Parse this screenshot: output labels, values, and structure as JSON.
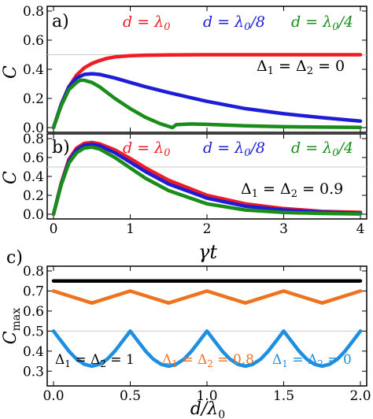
{
  "chart_data": [
    {
      "panel_label": "a)",
      "type": "line",
      "xlim": [
        0,
        4
      ],
      "ylim": [
        0,
        0.8
      ],
      "yticks": [
        "0.0",
        "0.2",
        "0.4",
        "0.6",
        "0.8"
      ],
      "ylabel": "C",
      "annotation": "Δ1 = Δ2 = 0",
      "series": [
        {
          "name": "d = λ0",
          "color": "#ee1c24",
          "x": [
            0,
            0.1,
            0.2,
            0.3,
            0.4,
            0.5,
            0.6,
            0.7,
            0.8,
            1.0,
            1.2,
            1.5,
            2.0,
            2.5,
            3.0,
            3.5,
            4.0
          ],
          "y": [
            0,
            0.16,
            0.28,
            0.36,
            0.41,
            0.44,
            0.46,
            0.475,
            0.485,
            0.493,
            0.497,
            0.499,
            0.5,
            0.5,
            0.5,
            0.5,
            0.5
          ]
        },
        {
          "name": "d = λ0/8",
          "color": "#1d1dd8",
          "x": [
            0,
            0.1,
            0.2,
            0.3,
            0.4,
            0.5,
            0.6,
            0.8,
            1.0,
            1.2,
            1.5,
            2.0,
            2.5,
            3.0,
            3.5,
            4.0
          ],
          "y": [
            0,
            0.16,
            0.28,
            0.34,
            0.365,
            0.37,
            0.365,
            0.34,
            0.31,
            0.28,
            0.24,
            0.18,
            0.13,
            0.095,
            0.068,
            0.045
          ]
        },
        {
          "name": "d = λ0/4",
          "color": "#1a8c1a",
          "x": [
            0,
            0.1,
            0.2,
            0.3,
            0.35,
            0.4,
            0.5,
            0.6,
            0.8,
            1.0,
            1.2,
            1.4,
            1.55,
            1.6,
            1.8,
            2.0,
            2.5,
            3.0,
            3.5,
            4.0
          ],
          "y": [
            0,
            0.15,
            0.26,
            0.31,
            0.325,
            0.325,
            0.31,
            0.28,
            0.2,
            0.13,
            0.07,
            0.025,
            0.0,
            0.02,
            0.025,
            0.022,
            0.012,
            0.006,
            0.003,
            0.001
          ]
        }
      ],
      "gridline_y": 0.5
    },
    {
      "panel_label": "b)",
      "type": "line",
      "xlim": [
        0,
        4
      ],
      "ylim": [
        0,
        0.8
      ],
      "xticks": [
        "0",
        "1",
        "2",
        "3",
        "4"
      ],
      "yticks": [
        "0.0",
        "0.2",
        "0.4",
        "0.6",
        "0.8"
      ],
      "xlabel": "γt",
      "ylabel": "C",
      "annotation": "Δ1 = Δ2 = 0.9",
      "series": [
        {
          "name": "d = λ0",
          "color": "#ee1c24",
          "x": [
            0,
            0.1,
            0.2,
            0.3,
            0.4,
            0.5,
            0.6,
            0.8,
            1.0,
            1.2,
            1.5,
            2.0,
            2.5,
            3.0,
            3.5,
            4.0
          ],
          "y": [
            0,
            0.33,
            0.58,
            0.7,
            0.75,
            0.76,
            0.745,
            0.68,
            0.59,
            0.49,
            0.36,
            0.2,
            0.11,
            0.06,
            0.03,
            0.02
          ]
        },
        {
          "name": "d = λ0/8",
          "color": "#1d1dd8",
          "x": [
            0,
            0.1,
            0.2,
            0.3,
            0.4,
            0.5,
            0.6,
            0.8,
            1.0,
            1.2,
            1.5,
            2.0,
            2.5,
            3.0,
            3.5,
            4.0
          ],
          "y": [
            0,
            0.32,
            0.56,
            0.68,
            0.73,
            0.74,
            0.725,
            0.65,
            0.55,
            0.45,
            0.32,
            0.17,
            0.085,
            0.045,
            0.022,
            0.012
          ]
        },
        {
          "name": "d = λ0/4",
          "color": "#1a8c1a",
          "x": [
            0,
            0.1,
            0.2,
            0.3,
            0.4,
            0.5,
            0.6,
            0.8,
            1.0,
            1.2,
            1.5,
            2.0,
            2.5,
            3.0,
            3.5,
            4.0
          ],
          "y": [
            0,
            0.31,
            0.54,
            0.65,
            0.7,
            0.71,
            0.69,
            0.6,
            0.49,
            0.38,
            0.25,
            0.11,
            0.045,
            0.018,
            0.008,
            0.003
          ]
        }
      ],
      "gridline_y": 0.5
    },
    {
      "panel_label": "c)",
      "type": "line",
      "xlim": [
        0,
        2
      ],
      "ylim": [
        0.25,
        0.8
      ],
      "xticks": [
        "0.0",
        "0.5",
        "1.0",
        "1.5",
        "2.0"
      ],
      "yticks": [
        "0.3",
        "0.4",
        "0.5",
        "0.6",
        "0.7",
        "0.8"
      ],
      "xlabel": "d/λ0",
      "ylabel": "Cmax",
      "series": [
        {
          "name": "Δ1 = Δ2 = 1",
          "color": "#000000",
          "x": [
            0,
            2
          ],
          "y": [
            0.75,
            0.75
          ]
        },
        {
          "name": "Δ1 = Δ2 = 0.8",
          "color": "#ee7320",
          "x": [
            0,
            0.125,
            0.25,
            0.375,
            0.5,
            0.625,
            0.75,
            0.875,
            1.0,
            1.125,
            1.25,
            1.375,
            1.5,
            1.625,
            1.75,
            1.875,
            2.0
          ],
          "y": [
            0.7,
            0.67,
            0.64,
            0.67,
            0.7,
            0.67,
            0.64,
            0.67,
            0.7,
            0.67,
            0.64,
            0.67,
            0.7,
            0.67,
            0.64,
            0.67,
            0.7
          ]
        },
        {
          "name": "Δ1 = Δ2 = 0",
          "color": "#1e8fe0",
          "x": [
            0,
            0.05,
            0.1,
            0.15,
            0.2,
            0.25,
            0.3,
            0.35,
            0.4,
            0.45,
            0.5,
            0.55,
            0.6,
            0.65,
            0.7,
            0.75,
            0.8,
            0.85,
            0.9,
            0.95,
            1.0,
            1.05,
            1.1,
            1.15,
            1.2,
            1.25,
            1.3,
            1.35,
            1.4,
            1.45,
            1.5,
            1.55,
            1.6,
            1.65,
            1.7,
            1.75,
            1.8,
            1.85,
            1.9,
            1.95,
            2.0
          ],
          "y": [
            0.5,
            0.45,
            0.4,
            0.36,
            0.335,
            0.325,
            0.335,
            0.36,
            0.4,
            0.45,
            0.5,
            0.45,
            0.4,
            0.36,
            0.335,
            0.325,
            0.335,
            0.36,
            0.4,
            0.45,
            0.5,
            0.45,
            0.4,
            0.36,
            0.335,
            0.325,
            0.335,
            0.36,
            0.4,
            0.45,
            0.5,
            0.45,
            0.4,
            0.36,
            0.335,
            0.325,
            0.335,
            0.36,
            0.4,
            0.45,
            0.5
          ]
        }
      ],
      "gridline_y": 0.5
    }
  ]
}
